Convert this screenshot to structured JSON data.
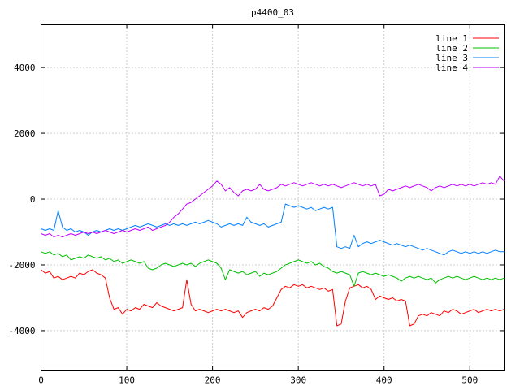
{
  "title": "p4400_03",
  "colors": {
    "background": "#ffffff",
    "border": "#000000",
    "grid": "#9a9a9a",
    "text": "#000000"
  },
  "chart_data": {
    "type": "line",
    "title": "p4400_03",
    "xlabel": "",
    "ylabel": "",
    "xlim": [
      0,
      540
    ],
    "ylim": [
      -5200,
      5300
    ],
    "xticks": [
      0,
      100,
      200,
      300,
      400,
      500
    ],
    "yticks": [
      -4000,
      -2000,
      0,
      2000,
      4000
    ],
    "grid": true,
    "grid_style": "dotted",
    "legend_position": "top-right-inside",
    "x_start": 0,
    "x_step": 5,
    "series": [
      {
        "name": "line 1",
        "color": "#ff0000",
        "values": [
          -2150,
          -2250,
          -2200,
          -2400,
          -2350,
          -2450,
          -2400,
          -2350,
          -2400,
          -2250,
          -2300,
          -2200,
          -2150,
          -2250,
          -2300,
          -2400,
          -3000,
          -3350,
          -3300,
          -3500,
          -3350,
          -3400,
          -3300,
          -3350,
          -3200,
          -3250,
          -3300,
          -3150,
          -3250,
          -3300,
          -3350,
          -3400,
          -3350,
          -3300,
          -2450,
          -3200,
          -3400,
          -3350,
          -3400,
          -3450,
          -3400,
          -3350,
          -3400,
          -3350,
          -3400,
          -3450,
          -3400,
          -3600,
          -3450,
          -3400,
          -3350,
          -3400,
          -3300,
          -3350,
          -3250,
          -3000,
          -2750,
          -2650,
          -2700,
          -2600,
          -2650,
          -2600,
          -2700,
          -2650,
          -2700,
          -2750,
          -2700,
          -2800,
          -2750,
          -3850,
          -3800,
          -3100,
          -2700,
          -2650,
          -2600,
          -2700,
          -2650,
          -2750,
          -3050,
          -2950,
          -3000,
          -3050,
          -3000,
          -3100,
          -3050,
          -3100,
          -3850,
          -3800,
          -3550,
          -3500,
          -3550,
          -3450,
          -3500,
          -3550,
          -3400,
          -3450,
          -3350,
          -3400,
          -3500,
          -3450,
          -3400,
          -3350,
          -3450,
          -3400,
          -3350,
          -3400,
          -3350,
          -3400,
          -3350
        ]
      },
      {
        "name": "line 2",
        "color": "#00c000",
        "values": [
          -1600,
          -1650,
          -1600,
          -1700,
          -1650,
          -1750,
          -1700,
          -1850,
          -1800,
          -1750,
          -1800,
          -1700,
          -1750,
          -1800,
          -1750,
          -1850,
          -1800,
          -1900,
          -1850,
          -1950,
          -1900,
          -1850,
          -1900,
          -1950,
          -1900,
          -2100,
          -2150,
          -2100,
          -2000,
          -1950,
          -2000,
          -2050,
          -2000,
          -1950,
          -2000,
          -1950,
          -2050,
          -1950,
          -1900,
          -1850,
          -1900,
          -1950,
          -2100,
          -2450,
          -2150,
          -2200,
          -2250,
          -2200,
          -2300,
          -2250,
          -2200,
          -2350,
          -2250,
          -2300,
          -2250,
          -2200,
          -2100,
          -2000,
          -1950,
          -1900,
          -1850,
          -1900,
          -1950,
          -1900,
          -2000,
          -1950,
          -2050,
          -2100,
          -2200,
          -2250,
          -2200,
          -2250,
          -2300,
          -2650,
          -2250,
          -2200,
          -2250,
          -2300,
          -2250,
          -2300,
          -2350,
          -2300,
          -2350,
          -2400,
          -2500,
          -2400,
          -2350,
          -2400,
          -2350,
          -2400,
          -2450,
          -2400,
          -2550,
          -2450,
          -2400,
          -2350,
          -2400,
          -2350,
          -2400,
          -2450,
          -2400,
          -2350,
          -2400,
          -2450,
          -2400,
          -2450,
          -2400,
          -2450,
          -2400
        ]
      },
      {
        "name": "line 3",
        "color": "#0080ff",
        "values": [
          -900,
          -950,
          -900,
          -950,
          -350,
          -850,
          -950,
          -900,
          -1000,
          -950,
          -1000,
          -1100,
          -1000,
          -950,
          -1000,
          -950,
          -900,
          -950,
          -900,
          -950,
          -900,
          -850,
          -800,
          -850,
          -800,
          -750,
          -800,
          -850,
          -800,
          -750,
          -800,
          -750,
          -800,
          -750,
          -800,
          -750,
          -700,
          -750,
          -700,
          -650,
          -700,
          -750,
          -850,
          -800,
          -750,
          -800,
          -750,
          -800,
          -550,
          -700,
          -750,
          -800,
          -750,
          -850,
          -800,
          -750,
          -700,
          -150,
          -200,
          -250,
          -200,
          -250,
          -300,
          -250,
          -350,
          -300,
          -250,
          -300,
          -250,
          -1450,
          -1500,
          -1450,
          -1500,
          -1100,
          -1450,
          -1350,
          -1300,
          -1350,
          -1300,
          -1250,
          -1300,
          -1350,
          -1400,
          -1350,
          -1400,
          -1450,
          -1400,
          -1450,
          -1500,
          -1550,
          -1500,
          -1550,
          -1600,
          -1650,
          -1700,
          -1600,
          -1550,
          -1600,
          -1650,
          -1600,
          -1650,
          -1600,
          -1650,
          -1600,
          -1650,
          -1600,
          -1550,
          -1600,
          -1600
        ]
      },
      {
        "name": "line 4",
        "color": "#c000ff",
        "values": [
          -1050,
          -1100,
          -1050,
          -1150,
          -1100,
          -1150,
          -1100,
          -1050,
          -1100,
          -1050,
          -1000,
          -1050,
          -1000,
          -1050,
          -1000,
          -950,
          -1000,
          -1050,
          -1000,
          -950,
          -1000,
          -950,
          -900,
          -950,
          -900,
          -850,
          -950,
          -900,
          -850,
          -800,
          -700,
          -550,
          -450,
          -300,
          -150,
          -100,
          0,
          100,
          200,
          300,
          400,
          550,
          450,
          250,
          350,
          200,
          100,
          250,
          300,
          250,
          300,
          450,
          300,
          250,
          300,
          350,
          450,
          400,
          450,
          500,
          450,
          400,
          450,
          500,
          450,
          400,
          450,
          400,
          450,
          400,
          350,
          400,
          450,
          500,
          450,
          400,
          450,
          400,
          450,
          100,
          150,
          300,
          250,
          300,
          350,
          400,
          350,
          400,
          450,
          400,
          350,
          250,
          350,
          400,
          350,
          400,
          450,
          400,
          450,
          400,
          450,
          400,
          450,
          500,
          450,
          500,
          450,
          700,
          550
        ]
      }
    ]
  }
}
